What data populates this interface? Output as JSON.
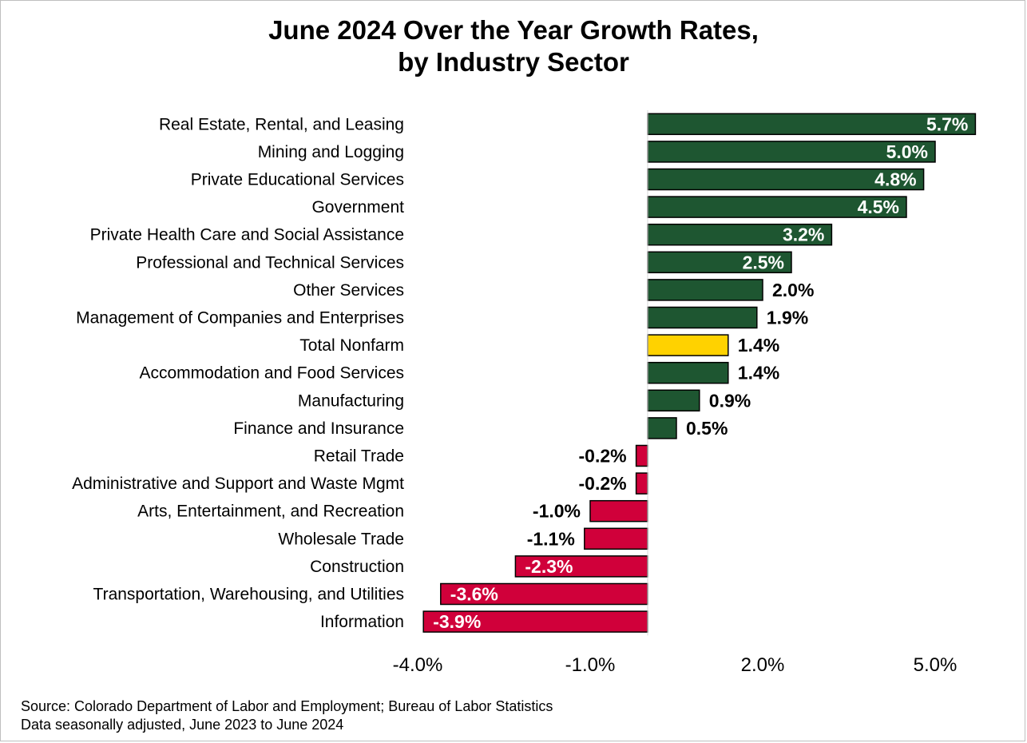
{
  "title_line1": "June 2024 Over the Year Growth Rates,",
  "title_line2": "by Industry Sector",
  "source_line1": "Source: Colorado Department of Labor and Employment; Bureau of Labor Statistics",
  "source_line2": "Data seasonally adjusted, June 2023 to June 2024",
  "colors": {
    "positive": "#1e5631",
    "negative": "#d0003a",
    "highlight": "#ffd200",
    "bar_outline": "#000000"
  },
  "chart_data": {
    "type": "bar",
    "orientation": "horizontal",
    "title": "June 2024 Over the Year Growth Rates, by Industry Sector",
    "categories": [
      "Real Estate, Rental, and Leasing",
      "Mining and Logging",
      "Private Educational Services",
      "Government",
      "Private Health Care and Social Assistance",
      "Professional and Technical Services",
      "Other Services",
      "Management of Companies and Enterprises",
      "Total Nonfarm",
      "Accommodation and Food Services",
      "Manufacturing",
      "Finance and Insurance",
      "Retail Trade",
      "Administrative and Support and Waste Mgmt",
      "Arts, Entertainment, and Recreation",
      "Wholesale Trade",
      "Construction",
      "Transportation, Warehousing, and Utilities",
      "Information"
    ],
    "values": [
      5.7,
      5.0,
      4.8,
      4.5,
      3.2,
      2.5,
      2.0,
      1.9,
      1.4,
      1.4,
      0.9,
      0.5,
      -0.2,
      -0.2,
      -1.0,
      -1.1,
      -2.3,
      -3.6,
      -3.9
    ],
    "value_labels": [
      "5.7%",
      "5.0%",
      "4.8%",
      "4.5%",
      "3.2%",
      "2.5%",
      "2.0%",
      "1.9%",
      "1.4%",
      "1.4%",
      "0.9%",
      "0.5%",
      "-0.2%",
      "-0.2%",
      "-1.0%",
      "-1.1%",
      "-2.3%",
      "-3.6%",
      "-3.9%"
    ],
    "highlight_category": "Total Nonfarm",
    "xlim": [
      -4.0,
      5.0
    ],
    "xticks": [
      -4.0,
      -1.0,
      2.0,
      5.0
    ],
    "xtick_labels": [
      "-4.0%",
      "-1.0%",
      "2.0%",
      "5.0%"
    ],
    "grid": false,
    "legend": "none"
  }
}
